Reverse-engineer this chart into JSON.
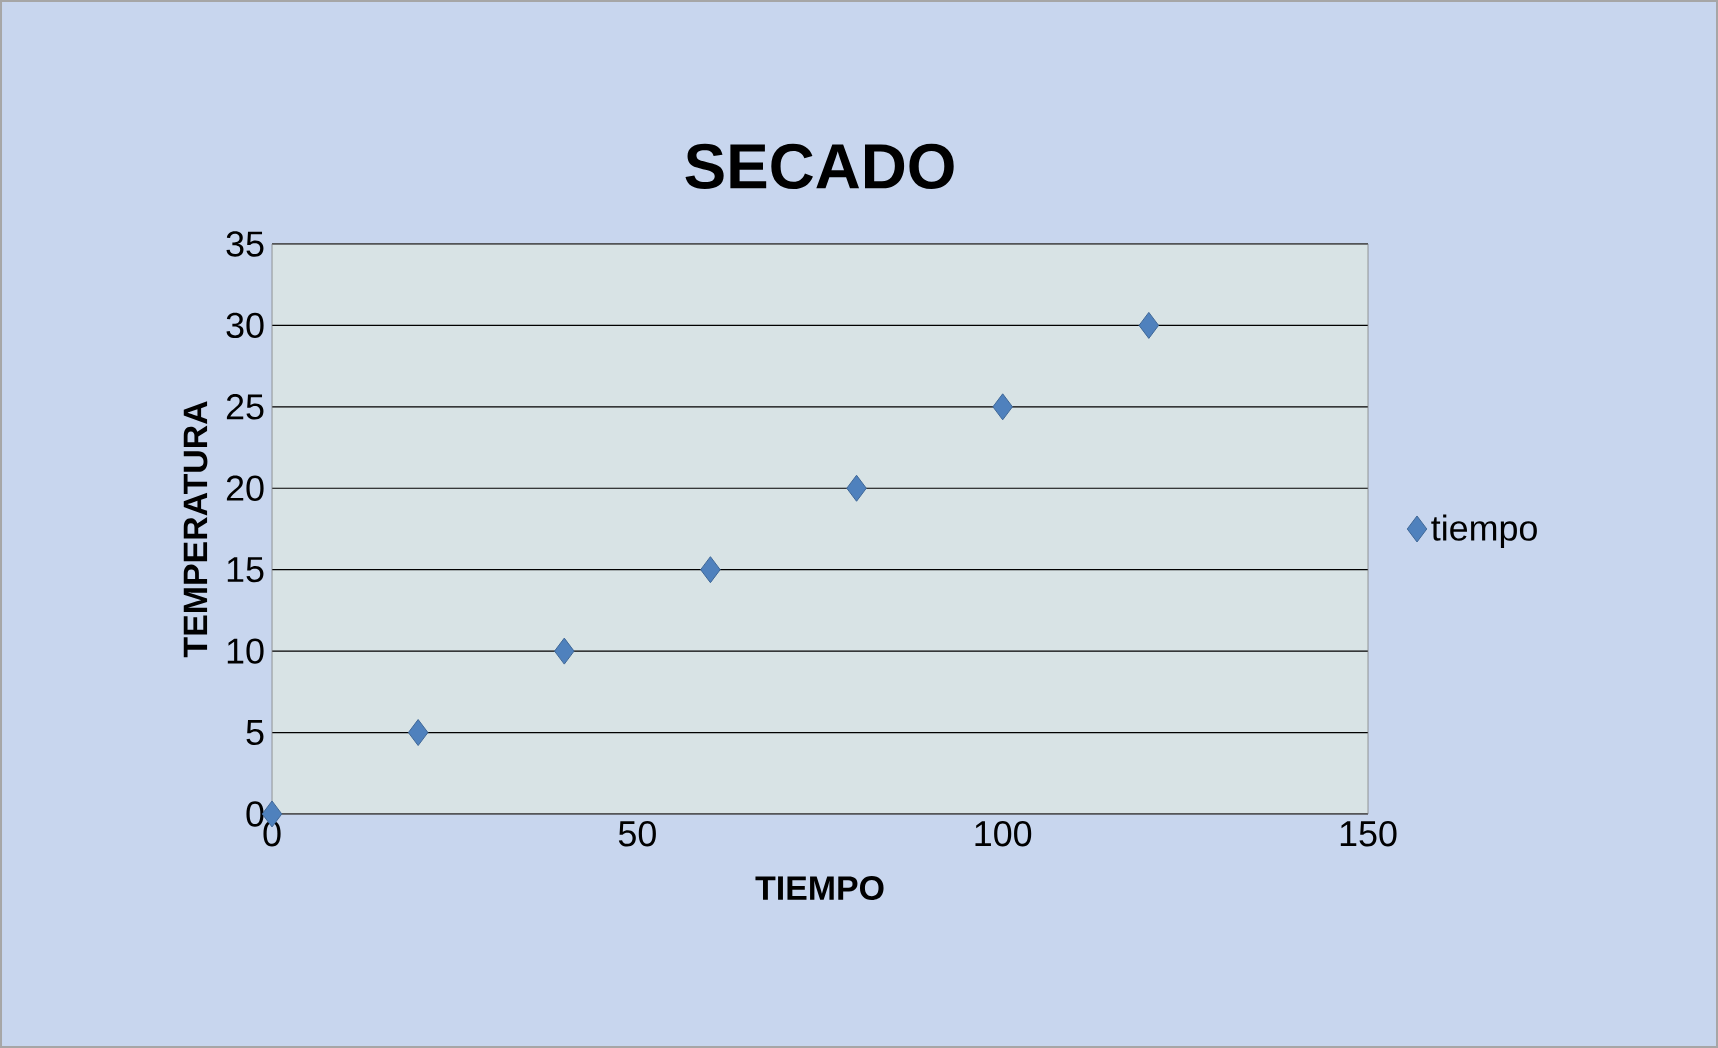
{
  "chart_data": {
    "type": "scatter",
    "title": "SECADO",
    "xlabel": "TIEMPO",
    "ylabel": "TEMPERATURA",
    "series": [
      {
        "name": "tiempo",
        "color": "#4f81bd",
        "x": [
          0,
          20,
          40,
          60,
          80,
          100,
          120
        ],
        "values": [
          0,
          5,
          10,
          15,
          20,
          25,
          30
        ]
      }
    ],
    "xlim": [
      0,
      150
    ],
    "ylim": [
      0,
      35
    ],
    "xticks": [
      0,
      50,
      100,
      150
    ],
    "yticks": [
      0,
      5,
      10,
      15,
      20,
      25,
      30,
      35
    ],
    "grid": "y",
    "legend": "right",
    "marker": "diamond"
  }
}
